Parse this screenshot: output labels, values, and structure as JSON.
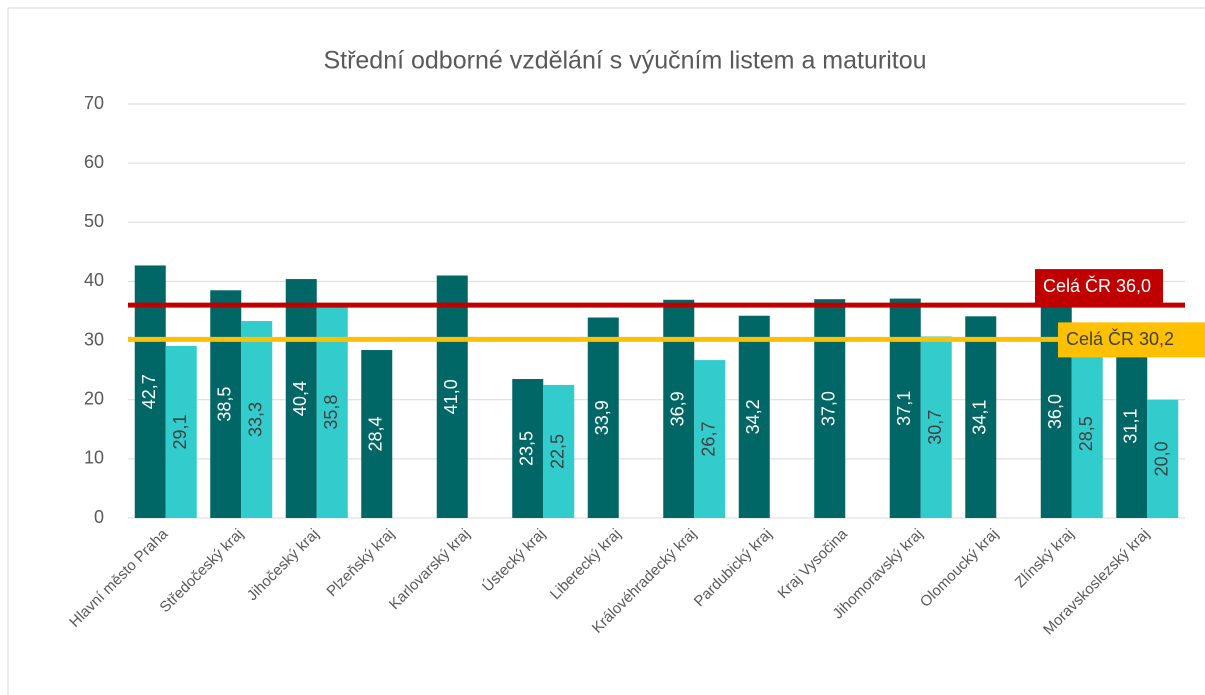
{
  "chart_data": {
    "type": "bar",
    "title": "Střední odborné vzdělání s výučním listem a maturitou",
    "categories": [
      "Hlavní město Praha",
      "Středočeský kraj",
      "Jihočeský kraj",
      "Plzeňský kraj",
      "Karlovarský kraj",
      "Ústecký kraj",
      "Liberecký kraj",
      "Královéhradecký kraj",
      "Pardubický kraj",
      "Kraj Vysočina",
      "Jihomoravský kraj",
      "Olomoucký kraj",
      "Zlínský kraj",
      "Moravskoslezský kraj"
    ],
    "series": [
      {
        "color": "#006666",
        "values": [
          42.7,
          38.5,
          40.4,
          28.4,
          41.0,
          23.5,
          33.9,
          36.9,
          34.2,
          37.0,
          37.1,
          34.1,
          36.0,
          31.1
        ],
        "value_labels": [
          "42,7",
          "38,5",
          "40,4",
          "28,4",
          "41,0",
          "23,5",
          "33,9",
          "36,9",
          "34,2",
          "37,0",
          "37,1",
          "34,1",
          "36,0",
          "31,1"
        ]
      },
      {
        "color": "#33cccc",
        "values": [
          29.1,
          33.3,
          35.8,
          null,
          null,
          22.5,
          null,
          26.7,
          null,
          null,
          30.7,
          null,
          28.5,
          20.0
        ],
        "value_labels": [
          "29,1",
          "33,3",
          "35,8",
          null,
          null,
          "22,5",
          null,
          "26,7",
          null,
          null,
          "30,7",
          null,
          "28,5",
          "20,0"
        ]
      }
    ],
    "reference_lines": [
      {
        "value": 36.0,
        "label": "Celá ČR 36,0",
        "color": "#c00000"
      },
      {
        "value": 30.2,
        "label": "Celá ČR 30,2",
        "color": "#ffc000"
      }
    ],
    "ylim": [
      0,
      70
    ],
    "yticks": [
      0,
      10,
      20,
      30,
      40,
      50,
      60,
      70
    ],
    "grid": true
  }
}
